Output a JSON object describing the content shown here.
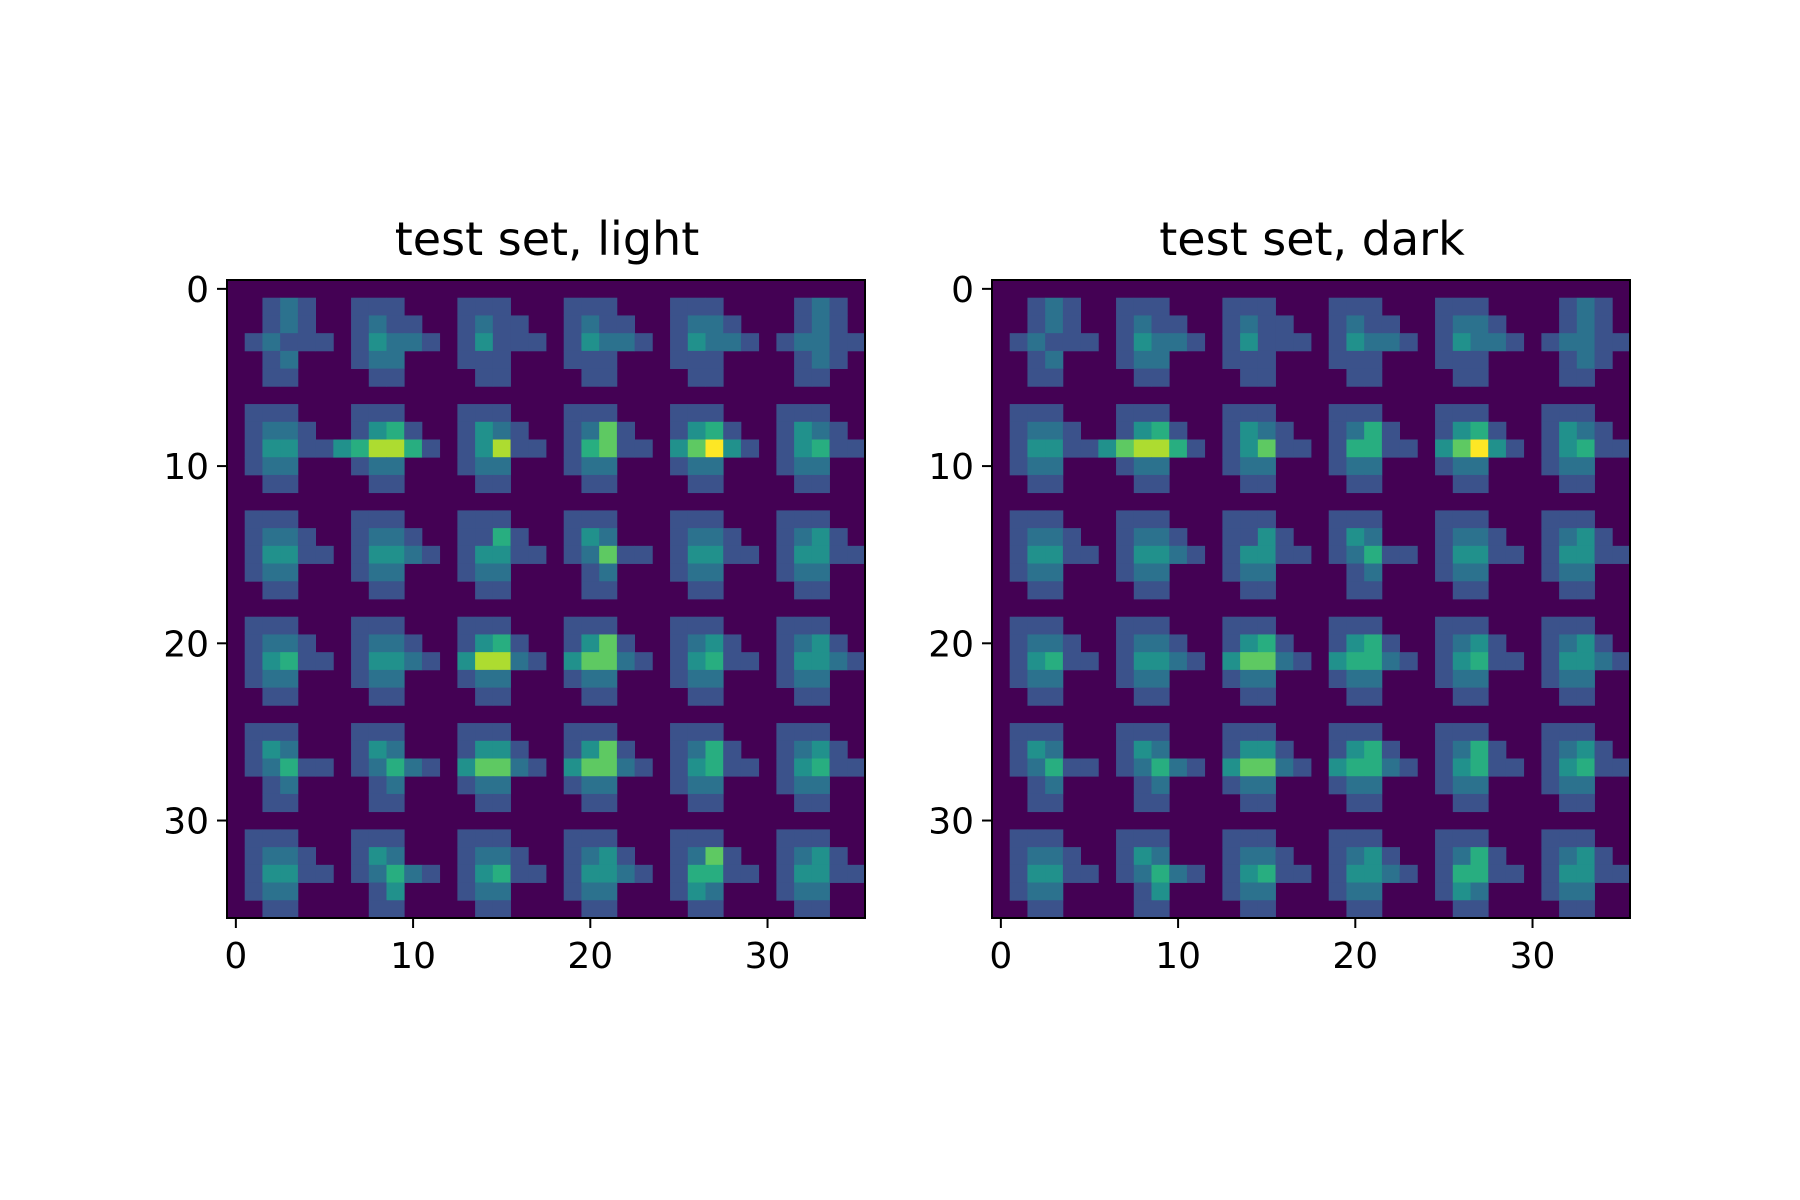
{
  "chart_data": [
    {
      "type": "heatmap",
      "title": "test set, light",
      "xlabel": "",
      "ylabel": "",
      "rows": 36,
      "cols": 36,
      "xlim": [
        -0.5,
        35.5
      ],
      "ylim": [
        35.5,
        -0.5
      ],
      "xticks": [
        0,
        10,
        20,
        30
      ],
      "yticks": [
        0,
        10,
        20,
        30
      ],
      "grid": false,
      "colormap": "viridis",
      "tile_grid": {
        "tile_rows": 6,
        "tile_cols": 6,
        "tile_size": 6
      },
      "patch_rows": [
        [
          "....1...",
          "..112...",
          ".12...",
          ".1222...",
          "..1.3...",
          "..11....",
          ".1111...",
          ".221..."
        ],
        []
      ],
      "tiles": [
        [
          [
            "000000",
            "001210",
            "001210",
            "012111",
            "001200",
            "001100"
          ],
          [
            "000000",
            "011100",
            "012110",
            "013221",
            "012200",
            "001100"
          ],
          [
            "000000",
            "011100",
            "012110",
            "013111",
            "011100",
            "001100"
          ],
          [
            "000000",
            "011100",
            "012110",
            "013221",
            "011100",
            "001100"
          ],
          [
            "000000",
            "011100",
            "012210",
            "013221",
            "011100",
            "001100"
          ],
          [
            "000000",
            "001210",
            "001210",
            "012211",
            "001210",
            "001100"
          ]
        ],
        [
          [
            "000000",
            "011100",
            "012210",
            "013311",
            "012200",
            "001100"
          ],
          [
            "000000",
            "011100",
            "013410",
            "346641",
            "012200",
            "001100"
          ],
          [
            "000000",
            "011100",
            "013210",
            "013611",
            "012200",
            "001100"
          ],
          [
            "000000",
            "011100",
            "012510",
            "014511",
            "012200",
            "001100"
          ],
          [
            "000000",
            "011100",
            "013410",
            "035731",
            "012200",
            "001100"
          ],
          [
            "000000",
            "011100",
            "013210",
            "013411",
            "012200",
            "001100"
          ]
        ],
        [
          [
            "000000",
            "011100",
            "012210",
            "013311",
            "012200",
            "001100"
          ],
          [
            "000000",
            "011100",
            "012210",
            "013321",
            "012200",
            "001100"
          ],
          [
            "000000",
            "011100",
            "011410",
            "013311",
            "012200",
            "001100"
          ],
          [
            "000000",
            "011100",
            "013200",
            "012511",
            "001200",
            "001100"
          ],
          [
            "000000",
            "011100",
            "012210",
            "013311",
            "012200",
            "001100"
          ],
          [
            "000000",
            "011100",
            "012310",
            "013311",
            "012200",
            "001100"
          ]
        ],
        [
          [
            "000000",
            "011100",
            "012210",
            "013411",
            "012200",
            "001100"
          ],
          [
            "000000",
            "011100",
            "012210",
            "013321",
            "012200",
            "001100"
          ],
          [
            "000000",
            "011100",
            "013410",
            "036621",
            "012200",
            "001100"
          ],
          [
            "000000",
            "011100",
            "013510",
            "035521",
            "012200",
            "001100"
          ],
          [
            "000000",
            "011100",
            "012310",
            "013411",
            "012200",
            "001100"
          ],
          [
            "000000",
            "011100",
            "012310",
            "013321",
            "012200",
            "001100"
          ]
        ],
        [
          [
            "000000",
            "011100",
            "013200",
            "012411",
            "001200",
            "001100"
          ],
          [
            "000000",
            "011100",
            "013200",
            "012421",
            "001200",
            "001100"
          ],
          [
            "000000",
            "011100",
            "013310",
            "035521",
            "012200",
            "001100"
          ],
          [
            "000000",
            "011100",
            "013510",
            "035521",
            "012200",
            "001100"
          ],
          [
            "000000",
            "011100",
            "012410",
            "013411",
            "012200",
            "001100"
          ],
          [
            "000000",
            "011100",
            "012310",
            "013411",
            "012200",
            "001100"
          ]
        ],
        [
          [
            "000000",
            "011100",
            "012210",
            "013311",
            "012200",
            "001100"
          ],
          [
            "000000",
            "011100",
            "013200",
            "012421",
            "001300",
            "001100"
          ],
          [
            "000000",
            "011100",
            "012210",
            "013411",
            "012200",
            "001100"
          ],
          [
            "000000",
            "011100",
            "012310",
            "013321",
            "012200",
            "001100"
          ],
          [
            "000000",
            "011100",
            "012510",
            "014411",
            "013200",
            "001100"
          ],
          [
            "000000",
            "011100",
            "012310",
            "013311",
            "012200",
            "001100"
          ]
        ]
      ],
      "note": ""
    },
    {
      "type": "heatmap",
      "title": "test set, dark",
      "xlabel": "",
      "ylabel": "",
      "rows": 36,
      "cols": 36,
      "xlim": [
        -0.5,
        35.5
      ],
      "ylim": [
        35.5,
        -0.5
      ],
      "xticks": [
        0,
        10,
        20,
        30
      ],
      "yticks": [
        0,
        10,
        20,
        30
      ],
      "grid": false,
      "colormap": "viridis",
      "tiles": [
        [
          [
            "000000",
            "001210",
            "001210",
            "012111",
            "001200",
            "001100"
          ],
          [
            "000000",
            "011100",
            "012110",
            "013221",
            "012200",
            "001100"
          ],
          [
            "000000",
            "011100",
            "012110",
            "013111",
            "011100",
            "001100"
          ],
          [
            "000000",
            "011100",
            "012110",
            "013221",
            "011100",
            "001100"
          ],
          [
            "000000",
            "011100",
            "012210",
            "013221",
            "011100",
            "001100"
          ],
          [
            "000000",
            "001210",
            "001210",
            "012211",
            "001210",
            "001100"
          ]
        ],
        [
          [
            "000000",
            "011100",
            "012210",
            "013311",
            "012200",
            "001100"
          ],
          [
            "000000",
            "011100",
            "013410",
            "356641",
            "012200",
            "001100"
          ],
          [
            "000000",
            "011100",
            "013210",
            "013511",
            "012200",
            "001100"
          ],
          [
            "000000",
            "011100",
            "012410",
            "014411",
            "012200",
            "001100"
          ],
          [
            "000000",
            "011100",
            "013410",
            "035731",
            "012200",
            "001100"
          ],
          [
            "000000",
            "011100",
            "013210",
            "013411",
            "012200",
            "001100"
          ]
        ],
        [
          [
            "000000",
            "011100",
            "012210",
            "013311",
            "012200",
            "001100"
          ],
          [
            "000000",
            "011100",
            "012210",
            "013321",
            "012200",
            "001100"
          ],
          [
            "000000",
            "011100",
            "011310",
            "013311",
            "012200",
            "001100"
          ],
          [
            "000000",
            "011100",
            "013200",
            "012411",
            "001200",
            "001100"
          ],
          [
            "000000",
            "011100",
            "012210",
            "013311",
            "012200",
            "001100"
          ],
          [
            "000000",
            "011100",
            "012310",
            "013311",
            "012200",
            "001100"
          ]
        ],
        [
          [
            "000000",
            "011100",
            "012210",
            "013411",
            "012200",
            "001100"
          ],
          [
            "000000",
            "011100",
            "012210",
            "013321",
            "012200",
            "001100"
          ],
          [
            "000000",
            "011100",
            "013410",
            "035521",
            "012200",
            "001100"
          ],
          [
            "000000",
            "011100",
            "013410",
            "034421",
            "012200",
            "001100"
          ],
          [
            "000000",
            "011100",
            "012310",
            "013411",
            "012200",
            "001100"
          ],
          [
            "000000",
            "011100",
            "012310",
            "013321",
            "012200",
            "001100"
          ]
        ],
        [
          [
            "000000",
            "011100",
            "013200",
            "012411",
            "001200",
            "001100"
          ],
          [
            "000000",
            "011100",
            "013200",
            "012421",
            "001200",
            "001100"
          ],
          [
            "000000",
            "011100",
            "013310",
            "035521",
            "012200",
            "001100"
          ],
          [
            "000000",
            "011100",
            "013410",
            "034421",
            "012200",
            "001100"
          ],
          [
            "000000",
            "011100",
            "012410",
            "013411",
            "012200",
            "001100"
          ],
          [
            "000000",
            "011100",
            "012310",
            "013411",
            "012200",
            "001100"
          ]
        ],
        [
          [
            "000000",
            "011100",
            "012210",
            "013311",
            "012200",
            "001100"
          ],
          [
            "000000",
            "011100",
            "013200",
            "012421",
            "001300",
            "001100"
          ],
          [
            "000000",
            "011100",
            "012210",
            "013411",
            "012200",
            "001100"
          ],
          [
            "000000",
            "011100",
            "012310",
            "013321",
            "012200",
            "001100"
          ],
          [
            "000000",
            "011100",
            "012410",
            "014411",
            "013200",
            "001100"
          ],
          [
            "000000",
            "011100",
            "012310",
            "013311",
            "012200",
            "001100"
          ]
        ]
      ]
    }
  ]
}
